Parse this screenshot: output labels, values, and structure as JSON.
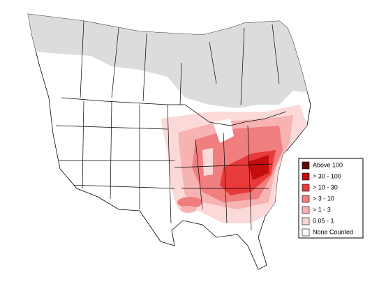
{
  "legend": {
    "items": [
      {
        "label": "Above 100",
        "color": "#5c0b0b"
      },
      {
        "label": "> 30 - 100",
        "color": "#c40d0d"
      },
      {
        "label": "> 10 - 30",
        "color": "#e83a3a"
      },
      {
        "label": "> 3 - 10",
        "color": "#f07e7e"
      },
      {
        "label": "> 1 - 3",
        "color": "#f7b2b2"
      },
      {
        "label": "0.05 - 1",
        "color": "#fcd9d9"
      },
      {
        "label": "None Counted",
        "color": "#ffffff"
      }
    ]
  }
}
